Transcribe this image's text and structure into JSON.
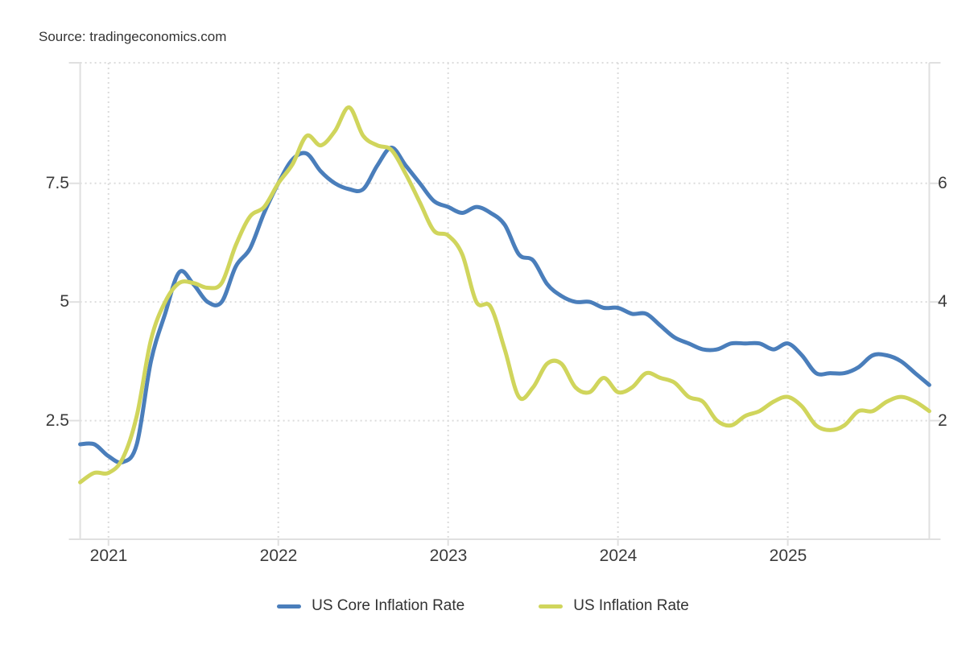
{
  "source": {
    "label": "Source: tradingeconomics.com"
  },
  "legend": [
    {
      "label": "US Core Inflation Rate",
      "color": "#4a7ebb"
    },
    {
      "label": "US Inflation Rate",
      "color": "#d0d55c"
    }
  ],
  "axes": {
    "left": {
      "ticks": [
        "7.5",
        "5",
        "2.5"
      ]
    },
    "right": {
      "ticks": [
        "6",
        "4",
        "2"
      ]
    },
    "x": {
      "ticks": [
        "2021",
        "2022",
        "2023",
        "2024",
        "2025"
      ]
    }
  },
  "colors": {
    "core_line": "#4a7ebb",
    "inflation_line": "#d0d55c",
    "gridline": "#dcdcdc",
    "axis_line": "#e0e0e0",
    "tick_text": "#3b3b3b",
    "background": "#ffffff"
  },
  "chart_data": {
    "type": "line",
    "x": [
      "2020-11",
      "2020-12",
      "2021-01",
      "2021-02",
      "2021-03",
      "2021-04",
      "2021-05",
      "2021-06",
      "2021-07",
      "2021-08",
      "2021-09",
      "2021-10",
      "2021-11",
      "2021-12",
      "2022-01",
      "2022-02",
      "2022-03",
      "2022-04",
      "2022-05",
      "2022-06",
      "2022-07",
      "2022-08",
      "2022-09",
      "2022-10",
      "2022-11",
      "2022-12",
      "2023-01",
      "2023-02",
      "2023-03",
      "2023-04",
      "2023-05",
      "2023-06",
      "2023-07",
      "2023-08",
      "2023-09",
      "2023-10",
      "2023-11",
      "2023-12",
      "2024-01",
      "2024-02",
      "2024-03",
      "2024-04",
      "2024-05",
      "2024-06",
      "2024-07",
      "2024-08",
      "2024-09",
      "2024-10",
      "2024-11",
      "2024-12",
      "2025-01",
      "2025-02",
      "2025-03",
      "2025-04",
      "2025-05",
      "2025-06",
      "2025-07",
      "2025-08",
      "2025-09",
      "2025-10",
      "2025-11"
    ],
    "series": [
      {
        "name": "US Core Inflation Rate",
        "axis": "right",
        "color": "#4a7ebb",
        "values": [
          1.6,
          1.6,
          1.4,
          1.3,
          1.6,
          3.0,
          3.8,
          4.5,
          4.3,
          4.0,
          4.0,
          4.6,
          4.9,
          5.5,
          6.0,
          6.4,
          6.5,
          6.2,
          6.0,
          5.9,
          5.9,
          6.3,
          6.6,
          6.3,
          6.0,
          5.7,
          5.6,
          5.5,
          5.6,
          5.5,
          5.3,
          4.8,
          4.7,
          4.3,
          4.1,
          4.0,
          4.0,
          3.9,
          3.9,
          3.8,
          3.8,
          3.6,
          3.4,
          3.3,
          3.2,
          3.2,
          3.3,
          3.3,
          3.3,
          3.2,
          3.3,
          3.1,
          2.8,
          2.8,
          2.8,
          2.9,
          3.1,
          3.1,
          3.0,
          2.8,
          2.6
        ]
      },
      {
        "name": "US Inflation Rate",
        "axis": "left",
        "color": "#d0d55c",
        "values": [
          1.2,
          1.4,
          1.4,
          1.7,
          2.6,
          4.2,
          5.0,
          5.4,
          5.4,
          5.3,
          5.4,
          6.2,
          6.8,
          7.0,
          7.5,
          7.9,
          8.5,
          8.3,
          8.6,
          9.1,
          8.5,
          8.3,
          8.2,
          7.7,
          7.1,
          6.5,
          6.4,
          6.0,
          5.0,
          4.9,
          4.0,
          3.0,
          3.2,
          3.7,
          3.7,
          3.2,
          3.1,
          3.4,
          3.1,
          3.2,
          3.5,
          3.4,
          3.3,
          3.0,
          2.9,
          2.5,
          2.4,
          2.6,
          2.7,
          2.9,
          3.0,
          2.8,
          2.4,
          2.3,
          2.4,
          2.7,
          2.7,
          2.9,
          3.0,
          2.9,
          2.7
        ]
      }
    ],
    "left_axis": {
      "range": [
        0,
        10.04
      ],
      "ticks": [
        2.5,
        5,
        7.5
      ]
    },
    "right_axis": {
      "range": [
        0,
        8.03
      ],
      "ticks": [
        2,
        4,
        6
      ]
    },
    "x_gridlines_at": [
      "2021-01",
      "2022-01",
      "2023-01",
      "2024-01",
      "2025-01"
    ],
    "title": "",
    "xlabel": "",
    "ylabel": "",
    "grid": "dotted",
    "legend_position": "bottom"
  }
}
